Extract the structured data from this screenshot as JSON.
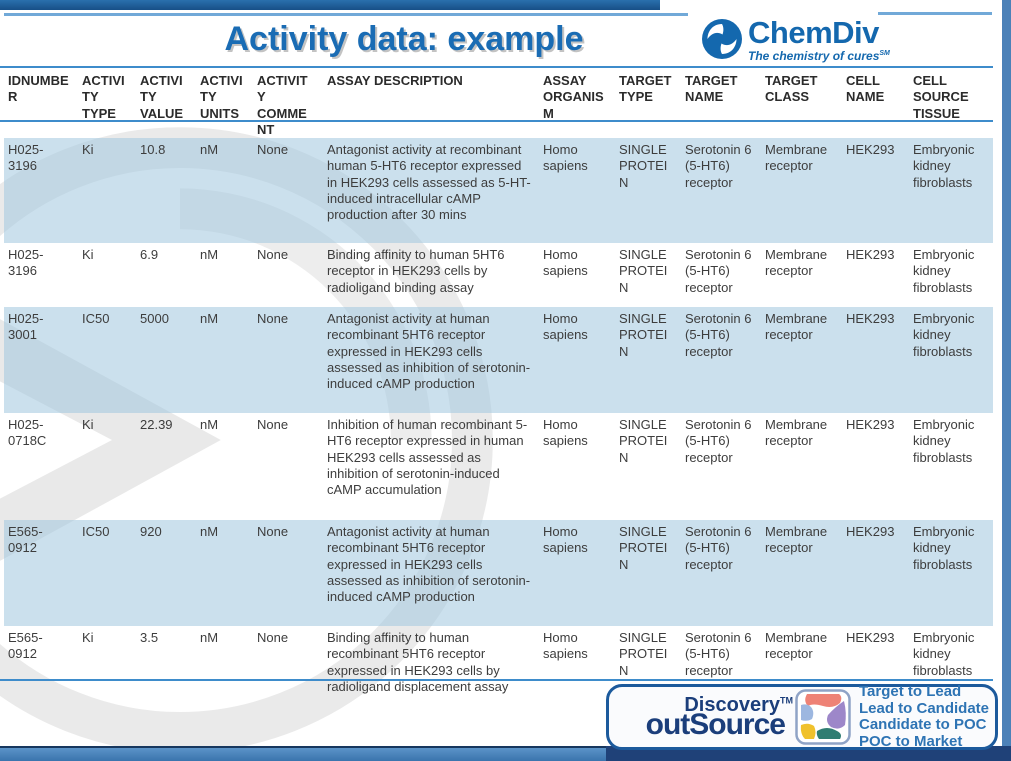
{
  "slide": {
    "title": "Activity data: example"
  },
  "chemdiv_logo": {
    "name": "ChemDiv",
    "tagline": "The chemistry of cures",
    "tagline_mark": "SM"
  },
  "table": {
    "columns": [
      "IDNUMBER",
      "ACTIVITY TYPE",
      "ACTIVITY VALUE",
      "ACTIVITY UNITS",
      "ACTIVITY COMMENT",
      "ASSAY DESCRIPTION",
      "ASSAY ORGANISM",
      "TARGET TYPE",
      "TARGET NAME",
      "TARGET CLASS",
      "CELL NAME",
      "CELL SOURCE TISSUE"
    ],
    "rows": [
      [
        "H025-3196",
        "Ki",
        "10.8",
        "nM",
        "None",
        "Antagonist activity at recombinant human 5-HT6 receptor expressed in HEK293 cells assessed as 5-HT-induced intracellular cAMP production after 30 mins",
        "Homo sapiens",
        "SINGLE PROTEIN",
        "Serotonin 6 (5-HT6) receptor",
        "Membrane receptor",
        "HEK293",
        "Embryonic kidney fibroblasts"
      ],
      [
        "H025-3196",
        "Ki",
        "6.9",
        "nM",
        "None",
        "Binding affinity to human 5HT6 receptor in HEK293 cells by radioligand binding assay",
        "Homo sapiens",
        "SINGLE PROTEIN",
        "Serotonin 6 (5-HT6) receptor",
        "Membrane receptor",
        "HEK293",
        "Embryonic kidney fibroblasts"
      ],
      [
        "H025-3001",
        "IC50",
        "5000",
        "nM",
        "None",
        "Antagonist activity at human recombinant 5HT6 receptor expressed in HEK293 cells assessed as inhibition of serotonin-induced cAMP production",
        "Homo sapiens",
        "SINGLE PROTEIN",
        "Serotonin 6 (5-HT6) receptor",
        "Membrane receptor",
        "HEK293",
        "Embryonic kidney fibroblasts"
      ],
      [
        "H025-0718C",
        "Ki",
        "22.39",
        "nM",
        "None",
        "Inhibition of human recombinant 5-HT6 receptor expressed in human HEK293 cells assessed as inhibition of serotonin-induced cAMP accumulation",
        "Homo sapiens",
        "SINGLE PROTEIN",
        "Serotonin 6 (5-HT6) receptor",
        "Membrane receptor",
        "HEK293",
        "Embryonic kidney fibroblasts"
      ],
      [
        "E565-0912",
        "IC50",
        "920",
        "nM",
        "None",
        "Antagonist activity at human recombinant 5HT6 receptor expressed in HEK293 cells assessed as inhibition of serotonin-induced cAMP production",
        "Homo sapiens",
        "SINGLE PROTEIN",
        "Serotonin 6 (5-HT6) receptor",
        "Membrane receptor",
        "HEK293",
        "Embryonic kidney fibroblasts"
      ],
      [
        "E565-0912",
        "Ki",
        "3.5",
        "nM",
        "None",
        "Binding affinity to human recombinant 5HT6 receptor expressed in HEK293 cells by radioligand displacement assay",
        "Homo sapiens",
        "SINGLE PROTEIN",
        "Serotonin 6 (5-HT6) receptor",
        "Membrane receptor",
        "HEK293",
        "Embryonic kidney fibroblasts"
      ]
    ]
  },
  "footer": {
    "brand_top": "Discovery",
    "brand_top_mark": "TM",
    "brand_bottom": "outSource",
    "stages": [
      "Target to Lead",
      "Lead to Candidate",
      "Candidate to POC",
      "POC to Market"
    ]
  },
  "colors": {
    "title_blue": "#1a6cb4",
    "rule_blue": "#3e8ccb",
    "row_blue": "#cfe1ec",
    "band_blue": "#4d86bf",
    "navy": "#1c3e78",
    "stage_text_blue": "#2e74b4"
  }
}
